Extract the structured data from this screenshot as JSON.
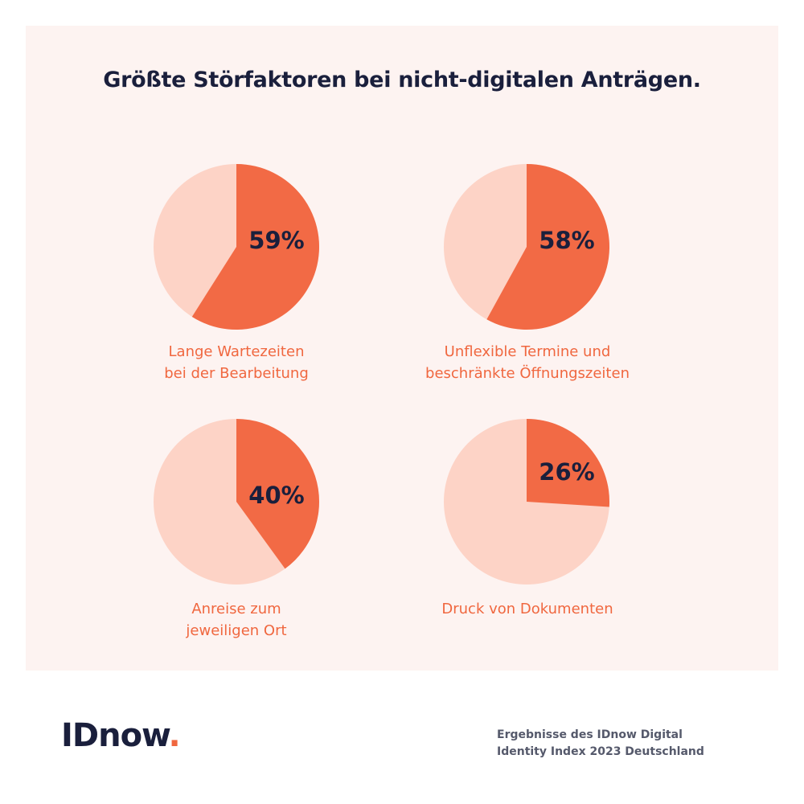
{
  "title": "Größte Störfaktoren bei nicht-digitalen Anträgen.",
  "colors": {
    "highlight": "#f26a45",
    "remainder": "#fdd3c6",
    "text_dark": "#1a1f3c",
    "label": "#f0673f",
    "background": "#fdf3f1"
  },
  "chart_data": {
    "type": "pie",
    "title": "Größte Störfaktoren bei nicht-digitalen Anträgen.",
    "unit": "%",
    "charts": [
      {
        "value": 59,
        "display": "59%",
        "label_lines": [
          "Lange Wartezeiten",
          "bei der Bearbeitung"
        ]
      },
      {
        "value": 58,
        "display": "58%",
        "label_lines": [
          "Unflexible Termine und",
          "beschränkte Öffnungszeiten"
        ]
      },
      {
        "value": 40,
        "display": "40%",
        "label_lines": [
          "Anreise zum",
          "jeweiligen Ort"
        ]
      },
      {
        "value": 26,
        "display": "26%",
        "label_lines": [
          "Druck von Dokumenten"
        ]
      }
    ]
  },
  "footer": {
    "logo_text": "IDnow",
    "logo_dot": ".",
    "source_lines": [
      "Ergebnisse des IDnow Digital",
      "Identity Index 2023 Deutschland"
    ]
  }
}
